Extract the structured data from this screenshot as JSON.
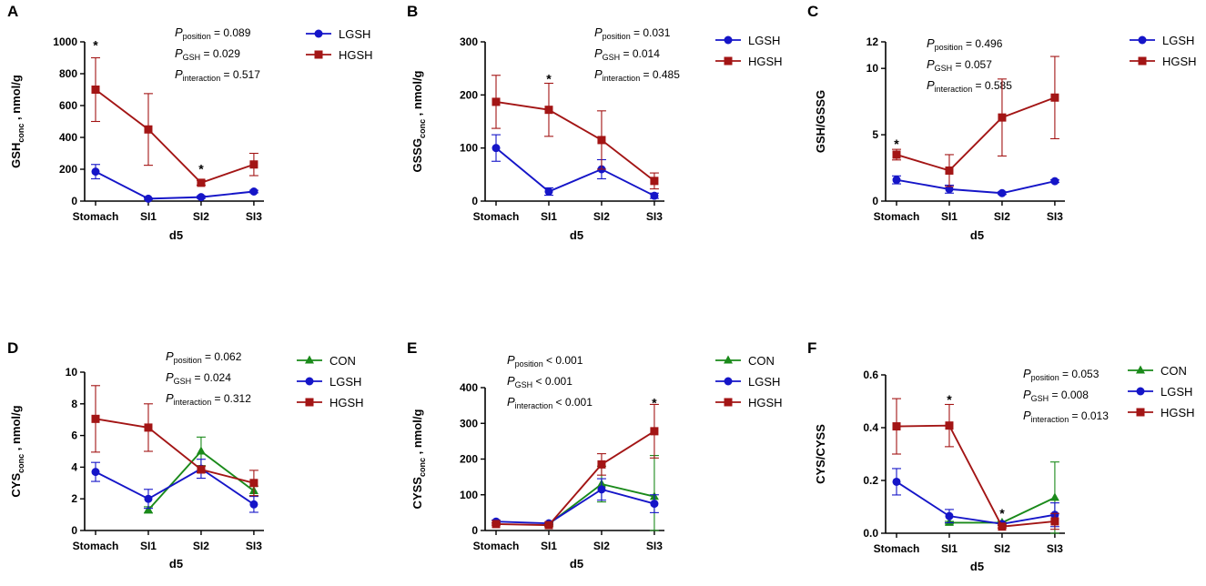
{
  "figure": {
    "colors": {
      "CON": "#1a8a1a",
      "LGSH": "#1515c8",
      "HGSH": "#a31515",
      "axis": "#000000"
    }
  },
  "chart_data": [
    {
      "panel": "A",
      "type": "line",
      "categories": [
        "Stomach",
        "SI1",
        "SI2",
        "SI3"
      ],
      "xlabel": "d5",
      "ylabel_main": "GSH",
      "ylabel_sub": "conc",
      "ylabel_tail": " , nmol/g",
      "ylim": [
        0,
        1000
      ],
      "yticks": [
        0,
        200,
        400,
        600,
        800,
        1000
      ],
      "stats": [
        {
          "sym": "P",
          "sub": "position",
          "text": " = 0.089"
        },
        {
          "sym": "P",
          "sub": "GSH",
          "text": " = 0.029"
        },
        {
          "sym": "P",
          "sub": "interaction",
          "text": " = 0.517"
        }
      ],
      "legend": [
        "LGSH",
        "HGSH"
      ],
      "stars": [
        {
          "category": "Stomach",
          "y": 985,
          "label": "*"
        },
        {
          "category": "SI2",
          "y": 210,
          "label": "*"
        }
      ],
      "series": [
        {
          "name": "LGSH",
          "marker": "circle",
          "values": [
            185,
            15,
            25,
            60
          ],
          "errors": [
            45,
            5,
            8,
            8
          ]
        },
        {
          "name": "HGSH",
          "marker": "square",
          "values": [
            700,
            450,
            115,
            230
          ],
          "errors": [
            200,
            225,
            15,
            70
          ]
        }
      ]
    },
    {
      "panel": "B",
      "type": "line",
      "categories": [
        "Stomach",
        "SI1",
        "SI2",
        "SI3"
      ],
      "xlabel": "d5",
      "ylabel_main": "GSSG",
      "ylabel_sub": "conc",
      "ylabel_tail": " , nmol/g",
      "ylim": [
        0,
        300
      ],
      "yticks": [
        0,
        100,
        200,
        300
      ],
      "stats": [
        {
          "sym": "P",
          "sub": "position",
          "text": " = 0.031"
        },
        {
          "sym": "P",
          "sub": "GSH",
          "text": " = 0.014"
        },
        {
          "sym": "P",
          "sub": "interaction",
          "text": " = 0.485"
        }
      ],
      "legend": [
        "LGSH",
        "HGSH"
      ],
      "stars": [
        {
          "category": "SI1",
          "y": 232,
          "label": "*"
        }
      ],
      "series": [
        {
          "name": "LGSH",
          "marker": "circle",
          "values": [
            100,
            18,
            60,
            10
          ],
          "errors": [
            25,
            7,
            18,
            5
          ]
        },
        {
          "name": "HGSH",
          "marker": "square",
          "values": [
            187,
            172,
            115,
            38
          ],
          "errors": [
            50,
            50,
            55,
            15
          ]
        }
      ]
    },
    {
      "panel": "C",
      "type": "line",
      "categories": [
        "Stomach",
        "SI1",
        "SI2",
        "SI3"
      ],
      "xlabel": "d5",
      "ylabel_main": "GSH/GSSG",
      "ylabel_sub": "",
      "ylabel_tail": "",
      "ylim": [
        0,
        12
      ],
      "yticks": [
        0,
        5,
        10,
        12
      ],
      "stats": [
        {
          "sym": "P",
          "sub": "position",
          "text": " = 0.496"
        },
        {
          "sym": "P",
          "sub": "GSH",
          "text": " = 0.057"
        },
        {
          "sym": "P",
          "sub": "interaction",
          "text": " = 0.585"
        }
      ],
      "legend": [
        "LGSH",
        "HGSH"
      ],
      "stars": [
        {
          "category": "Stomach",
          "y": 4.4,
          "label": "*"
        }
      ],
      "series": [
        {
          "name": "LGSH",
          "marker": "circle",
          "values": [
            1.6,
            0.9,
            0.6,
            1.5
          ],
          "errors": [
            0.3,
            0.3,
            0.1,
            0.1
          ]
        },
        {
          "name": "HGSH",
          "marker": "square",
          "values": [
            3.5,
            2.3,
            6.3,
            7.8
          ],
          "errors": [
            0.4,
            1.2,
            2.9,
            3.1
          ]
        }
      ]
    },
    {
      "panel": "D",
      "type": "line",
      "categories": [
        "Stomach",
        "SI1",
        "SI2",
        "SI3"
      ],
      "xlabel": "d5",
      "ylabel_main": "CYS",
      "ylabel_sub": "conc",
      "ylabel_tail": " , nmol/g",
      "ylim": [
        0,
        10
      ],
      "yticks": [
        0,
        2,
        4,
        6,
        8,
        10
      ],
      "stats": [
        {
          "sym": "P",
          "sub": "position",
          "text": " = 0.062"
        },
        {
          "sym": "P",
          "sub": "GSH",
          "text": " = 0.024"
        },
        {
          "sym": "P",
          "sub": "interaction",
          "text": " = 0.312"
        }
      ],
      "legend": [
        "CON",
        "LGSH",
        "HGSH"
      ],
      "stars": [],
      "series": [
        {
          "name": "CON",
          "marker": "triangle",
          "values": [
            null,
            1.3,
            5.0,
            2.5
          ],
          "errors": [
            0,
            0.2,
            0.9,
            0.3
          ]
        },
        {
          "name": "LGSH",
          "marker": "circle",
          "values": [
            3.7,
            2.0,
            3.9,
            1.65
          ],
          "errors": [
            0.6,
            0.6,
            0.6,
            0.5
          ]
        },
        {
          "name": "HGSH",
          "marker": "square",
          "values": [
            7.05,
            6.5,
            3.85,
            3.0
          ],
          "errors": [
            2.1,
            1.5,
            0.2,
            0.8
          ]
        }
      ]
    },
    {
      "panel": "E",
      "type": "line",
      "categories": [
        "Stomach",
        "SI1",
        "SI2",
        "SI3"
      ],
      "xlabel": "d5",
      "ylabel_main": "CYSS",
      "ylabel_sub": "conc",
      "ylabel_tail": " , nmol/g",
      "ylim": [
        0,
        400
      ],
      "yticks": [
        0,
        100,
        200,
        300,
        400
      ],
      "stats": [
        {
          "sym": "P",
          "sub": "position",
          "text": " < 0.001"
        },
        {
          "sym": "P",
          "sub": "GSH",
          "text": " < 0.001"
        },
        {
          "sym": "P",
          "sub": "interaction",
          "text": " < 0.001"
        }
      ],
      "legend": [
        "CON",
        "LGSH",
        "HGSH"
      ],
      "stars": [
        {
          "category": "SI3",
          "y": 360,
          "label": "*"
        }
      ],
      "series": [
        {
          "name": "CON",
          "marker": "triangle",
          "values": [
            null,
            18,
            130,
            95
          ],
          "errors": [
            0,
            3,
            50,
            115
          ]
        },
        {
          "name": "LGSH",
          "marker": "circle",
          "values": [
            25,
            20,
            115,
            75
          ],
          "errors": [
            4,
            3,
            30,
            25
          ]
        },
        {
          "name": "HGSH",
          "marker": "square",
          "values": [
            18,
            15,
            185,
            278
          ],
          "errors": [
            3,
            3,
            30,
            75
          ]
        }
      ]
    },
    {
      "panel": "F",
      "type": "line",
      "categories": [
        "Stomach",
        "SI1",
        "SI2",
        "SI3"
      ],
      "xlabel": "d5",
      "ylabel_main": "CYS/CYSS",
      "ylabel_sub": "",
      "ylabel_tail": "",
      "ylim": [
        0,
        0.6
      ],
      "yticks": [
        0.0,
        0.2,
        0.4,
        0.6
      ],
      "stats": [
        {
          "sym": "P",
          "sub": "position",
          "text": " = 0.053"
        },
        {
          "sym": "P",
          "sub": "GSH",
          "text": " = 0.008"
        },
        {
          "sym": "P",
          "sub": "interaction",
          "text": " = 0.013"
        }
      ],
      "legend": [
        "CON",
        "LGSH",
        "HGSH"
      ],
      "stars": [
        {
          "category": "SI1",
          "y": 0.51,
          "label": "*"
        },
        {
          "category": "SI2",
          "y": 0.08,
          "label": "*"
        }
      ],
      "series": [
        {
          "name": "CON",
          "marker": "triangle",
          "values": [
            null,
            0.04,
            0.04,
            0.135
          ],
          "errors": [
            0,
            0.005,
            0.005,
            0.135
          ]
        },
        {
          "name": "LGSH",
          "marker": "circle",
          "values": [
            0.195,
            0.065,
            0.035,
            0.07
          ],
          "errors": [
            0.05,
            0.025,
            0.005,
            0.045
          ]
        },
        {
          "name": "HGSH",
          "marker": "square",
          "values": [
            0.405,
            0.408,
            0.025,
            0.045
          ],
          "errors": [
            0.105,
            0.08,
            0.005,
            0.03
          ]
        }
      ]
    }
  ]
}
